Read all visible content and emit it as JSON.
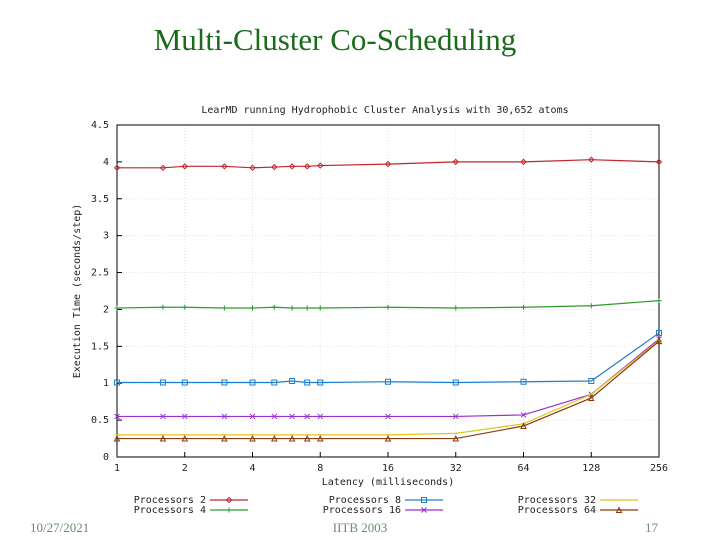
{
  "slide": {
    "title": "Multi-Cluster Co-Scheduling",
    "date": "10/27/2021",
    "venue": "IITB 2003",
    "page": "17"
  },
  "chart_data": {
    "type": "line",
    "title": "LearMD running Hydrophobic Cluster Analysis with 30,652 atoms",
    "x_label": "Latency (milliseconds)",
    "y_label": "Execution Time (seconds/step)",
    "x": [
      1,
      1.6,
      2,
      3,
      4,
      5,
      6,
      7,
      8,
      16,
      32,
      64,
      128,
      256
    ],
    "xscale": "log",
    "xlim": [
      1,
      256
    ],
    "xticks": [
      1,
      2,
      4,
      8,
      16,
      32,
      64,
      128,
      256
    ],
    "ylim": [
      0,
      4.5
    ],
    "yticks": [
      0,
      0.5,
      1,
      1.5,
      2,
      2.5,
      3,
      3.5,
      4,
      4.5
    ],
    "grid": true,
    "legend_position": "bottom",
    "series": [
      {
        "name": "Processors 2",
        "color": "#c0262c",
        "values": [
          3.92,
          3.92,
          3.94,
          3.94,
          3.92,
          3.93,
          3.94,
          3.94,
          3.95,
          3.97,
          4.0,
          4.0,
          4.03,
          4.0
        ]
      },
      {
        "name": "Processors 4",
        "color": "#2e9a2e",
        "values": [
          2.02,
          2.03,
          2.03,
          2.02,
          2.02,
          2.03,
          2.02,
          2.02,
          2.02,
          2.03,
          2.02,
          2.03,
          2.05,
          2.12
        ]
      },
      {
        "name": "Processors 8",
        "color": "#1e7fc8",
        "values": [
          1.01,
          1.01,
          1.01,
          1.01,
          1.01,
          1.01,
          1.03,
          1.01,
          1.01,
          1.02,
          1.01,
          1.02,
          1.03,
          1.68
        ]
      },
      {
        "name": "Processors 16",
        "color": "#9b30d0",
        "values": [
          0.55,
          0.55,
          0.55,
          0.55,
          0.55,
          0.55,
          0.55,
          0.55,
          0.55,
          0.55,
          0.55,
          0.57,
          0.85,
          1.6
        ]
      },
      {
        "name": "Processors 32",
        "color": "#d8c81c",
        "values": [
          0.3,
          0.3,
          0.3,
          0.3,
          0.3,
          0.3,
          0.3,
          0.3,
          0.3,
          0.3,
          0.32,
          0.45,
          0.85,
          1.58
        ]
      },
      {
        "name": "Processors 64",
        "color": "#8b3a10",
        "values": [
          0.25,
          0.25,
          0.25,
          0.25,
          0.25,
          0.25,
          0.25,
          0.25,
          0.25,
          0.25,
          0.25,
          0.42,
          0.8,
          1.57
        ]
      }
    ]
  }
}
